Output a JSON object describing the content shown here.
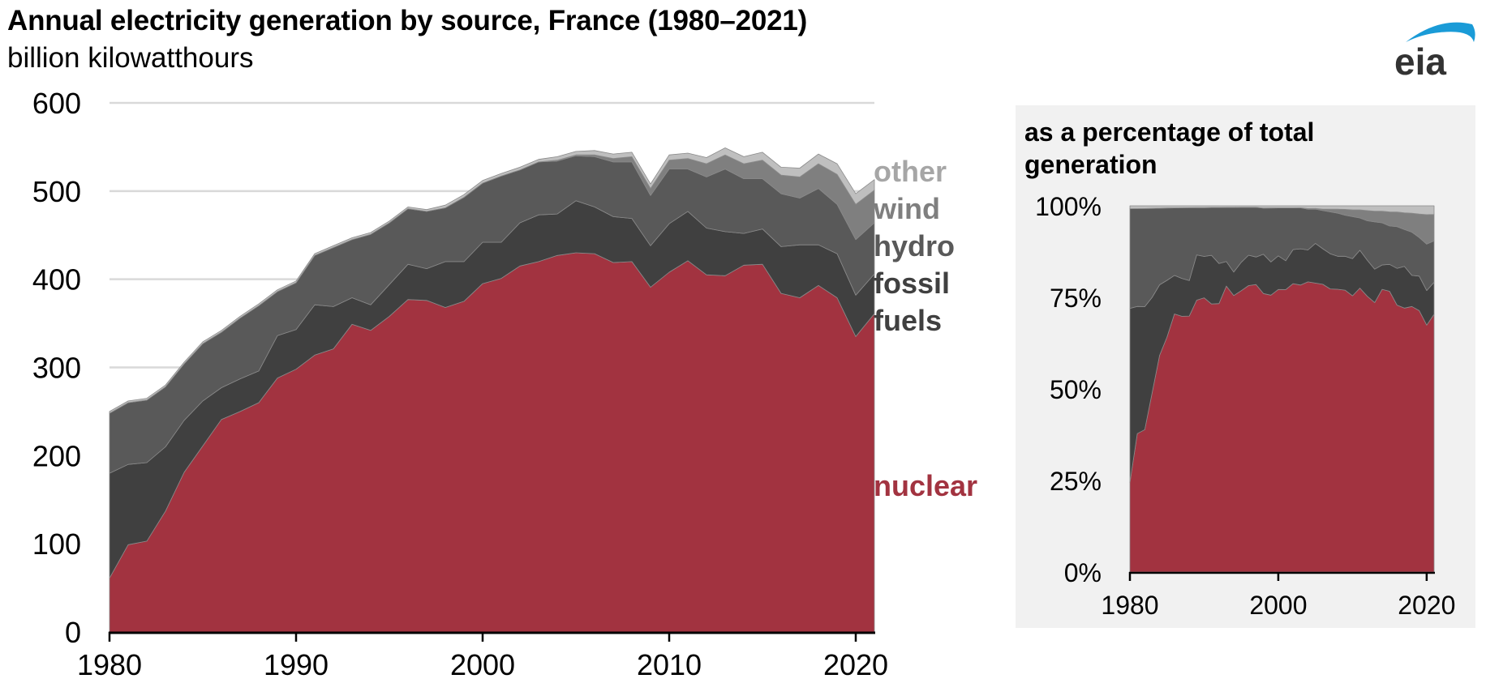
{
  "title": "Annual electricity generation by source, France (1980–2021)",
  "subtitle": "billion kilowatthours",
  "logo": {
    "text": "eia",
    "arc_color": "#1a9bd7",
    "text_color": "#333333"
  },
  "legend": [
    {
      "label": "other",
      "color": "#a6a6a6"
    },
    {
      "label": "wind",
      "color": "#7f7f7f"
    },
    {
      "label": "hydro",
      "color": "#595959"
    },
    {
      "label": "fossil",
      "color": "#404040"
    },
    {
      "label": "fuels",
      "color": "#404040"
    },
    {
      "label": "nuclear",
      "color": "#a23340"
    }
  ],
  "inset": {
    "title_line1": "as a percentage of total",
    "title_line2": "generation"
  },
  "chart_data": [
    {
      "type": "area",
      "stacked": true,
      "title": "Annual electricity generation by source, France (1980–2021)",
      "ylabel": "billion kilowatthours",
      "xlabel": "",
      "xlim": [
        1980,
        2021
      ],
      "ylim": [
        0,
        600
      ],
      "yticks": [
        0,
        100,
        200,
        300,
        400,
        500,
        600
      ],
      "xticks": [
        1980,
        1990,
        2000,
        2010,
        2020
      ],
      "grid": true,
      "legend": "right",
      "x": [
        1980,
        1981,
        1982,
        1983,
        1984,
        1985,
        1986,
        1987,
        1988,
        1989,
        1990,
        1991,
        1992,
        1993,
        1994,
        1995,
        1996,
        1997,
        1998,
        1999,
        2000,
        2001,
        2002,
        2003,
        2004,
        2005,
        2006,
        2007,
        2008,
        2009,
        2010,
        2011,
        2012,
        2013,
        2014,
        2015,
        2016,
        2017,
        2018,
        2019,
        2020,
        2021
      ],
      "series": [
        {
          "name": "nuclear",
          "color": "#a23340",
          "values": [
            61,
            99,
            103,
            137,
            181,
            211,
            241,
            250,
            260,
            288,
            298,
            314,
            321,
            349,
            342,
            358,
            377,
            376,
            368,
            375,
            395,
            401,
            415,
            420,
            427,
            430,
            429,
            419,
            420,
            391,
            408,
            421,
            405,
            404,
            416,
            417,
            384,
            379,
            393,
            379,
            335,
            361
          ]
        },
        {
          "name": "fossil fuels",
          "color": "#404040",
          "values": [
            119,
            91,
            89,
            73,
            59,
            51,
            36,
            37,
            36,
            48,
            45,
            57,
            48,
            30,
            29,
            36,
            40,
            36,
            52,
            45,
            47,
            41,
            49,
            53,
            47,
            59,
            53,
            52,
            49,
            47,
            55,
            56,
            53,
            50,
            36,
            40,
            53,
            60,
            46,
            50,
            47,
            45
          ]
        },
        {
          "name": "hydro",
          "color": "#595959",
          "values": [
            68,
            70,
            71,
            68,
            64,
            65,
            63,
            69,
            74,
            50,
            53,
            56,
            67,
            66,
            80,
            70,
            63,
            65,
            61,
            73,
            67,
            75,
            60,
            60,
            60,
            51,
            57,
            62,
            64,
            57,
            62,
            48,
            58,
            71,
            62,
            57,
            60,
            53,
            64,
            56,
            63,
            58
          ]
        },
        {
          "name": "wind",
          "color": "#7f7f7f",
          "values": [
            0,
            0,
            0,
            0,
            0,
            0,
            0,
            0,
            0,
            0,
            0,
            0,
            0,
            0,
            0,
            0,
            0,
            0,
            0,
            0,
            0,
            0,
            0,
            0,
            1,
            1,
            2,
            4,
            6,
            8,
            10,
            12,
            15,
            16,
            17,
            21,
            21,
            24,
            28,
            34,
            40,
            37
          ]
        },
        {
          "name": "other",
          "color": "#bfbfbf",
          "values": [
            2,
            2,
            2,
            2,
            2,
            2,
            2,
            2,
            2,
            2,
            2,
            2,
            2,
            2,
            2,
            2,
            2,
            2,
            3,
            3,
            3,
            3,
            3,
            3,
            4,
            4,
            5,
            5,
            5,
            5,
            6,
            6,
            7,
            8,
            8,
            9,
            9,
            10,
            11,
            12,
            12,
            12
          ]
        }
      ]
    },
    {
      "type": "area",
      "stacked": true,
      "percent": true,
      "title": "as a percentage of total generation",
      "xlim": [
        1980,
        2021
      ],
      "ylim": [
        0,
        100
      ],
      "yticks": [
        0,
        25,
        50,
        75,
        100
      ],
      "ytick_labels": [
        "0%",
        "25%",
        "50%",
        "75%",
        "100%"
      ],
      "xticks": [
        1980,
        2000,
        2020
      ],
      "grid": false
    }
  ]
}
